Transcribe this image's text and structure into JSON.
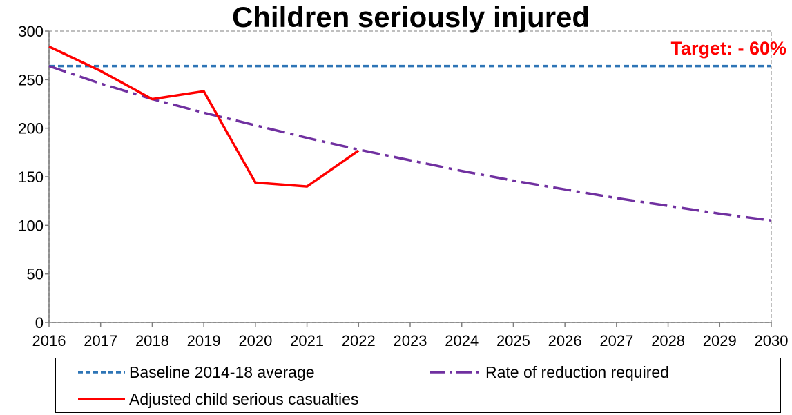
{
  "chart_data": {
    "type": "line",
    "title": "Children seriously injured",
    "annotation": "Target: - 60%",
    "xlabel": "",
    "ylabel": "",
    "xlim": [
      2016,
      2030
    ],
    "ylim": [
      0,
      300
    ],
    "y_ticks": [
      0,
      50,
      100,
      150,
      200,
      250,
      300
    ],
    "x_ticks": [
      2016,
      2017,
      2018,
      2019,
      2020,
      2021,
      2022,
      2023,
      2024,
      2025,
      2026,
      2027,
      2028,
      2029,
      2030
    ],
    "grid": false,
    "legend_position": "bottom",
    "series": [
      {
        "name": "Baseline 2014-18 average",
        "style": "dashed",
        "color": "#2e75b6",
        "x": [
          2016,
          2030
        ],
        "y": [
          264,
          264
        ]
      },
      {
        "name": "Rate of reduction required",
        "style": "dash-dot",
        "color": "#7030a0",
        "x": [
          2016,
          2017,
          2018,
          2019,
          2020,
          2021,
          2022,
          2023,
          2024,
          2025,
          2026,
          2027,
          2028,
          2029,
          2030
        ],
        "y": [
          264,
          246,
          230,
          216,
          203,
          190,
          178,
          167,
          156,
          146,
          137,
          128,
          120,
          112,
          105
        ]
      },
      {
        "name": "Adjusted child serious casualties",
        "style": "solid",
        "color": "#ff0000",
        "x": [
          2016,
          2017,
          2018,
          2019,
          2020,
          2021,
          2022
        ],
        "y": [
          284,
          259,
          230,
          238,
          144,
          140,
          177
        ]
      }
    ]
  },
  "colors": {
    "annotation": "#ff0000",
    "plot_border": "#bfbfbf",
    "axis": "#7f7f7f"
  }
}
